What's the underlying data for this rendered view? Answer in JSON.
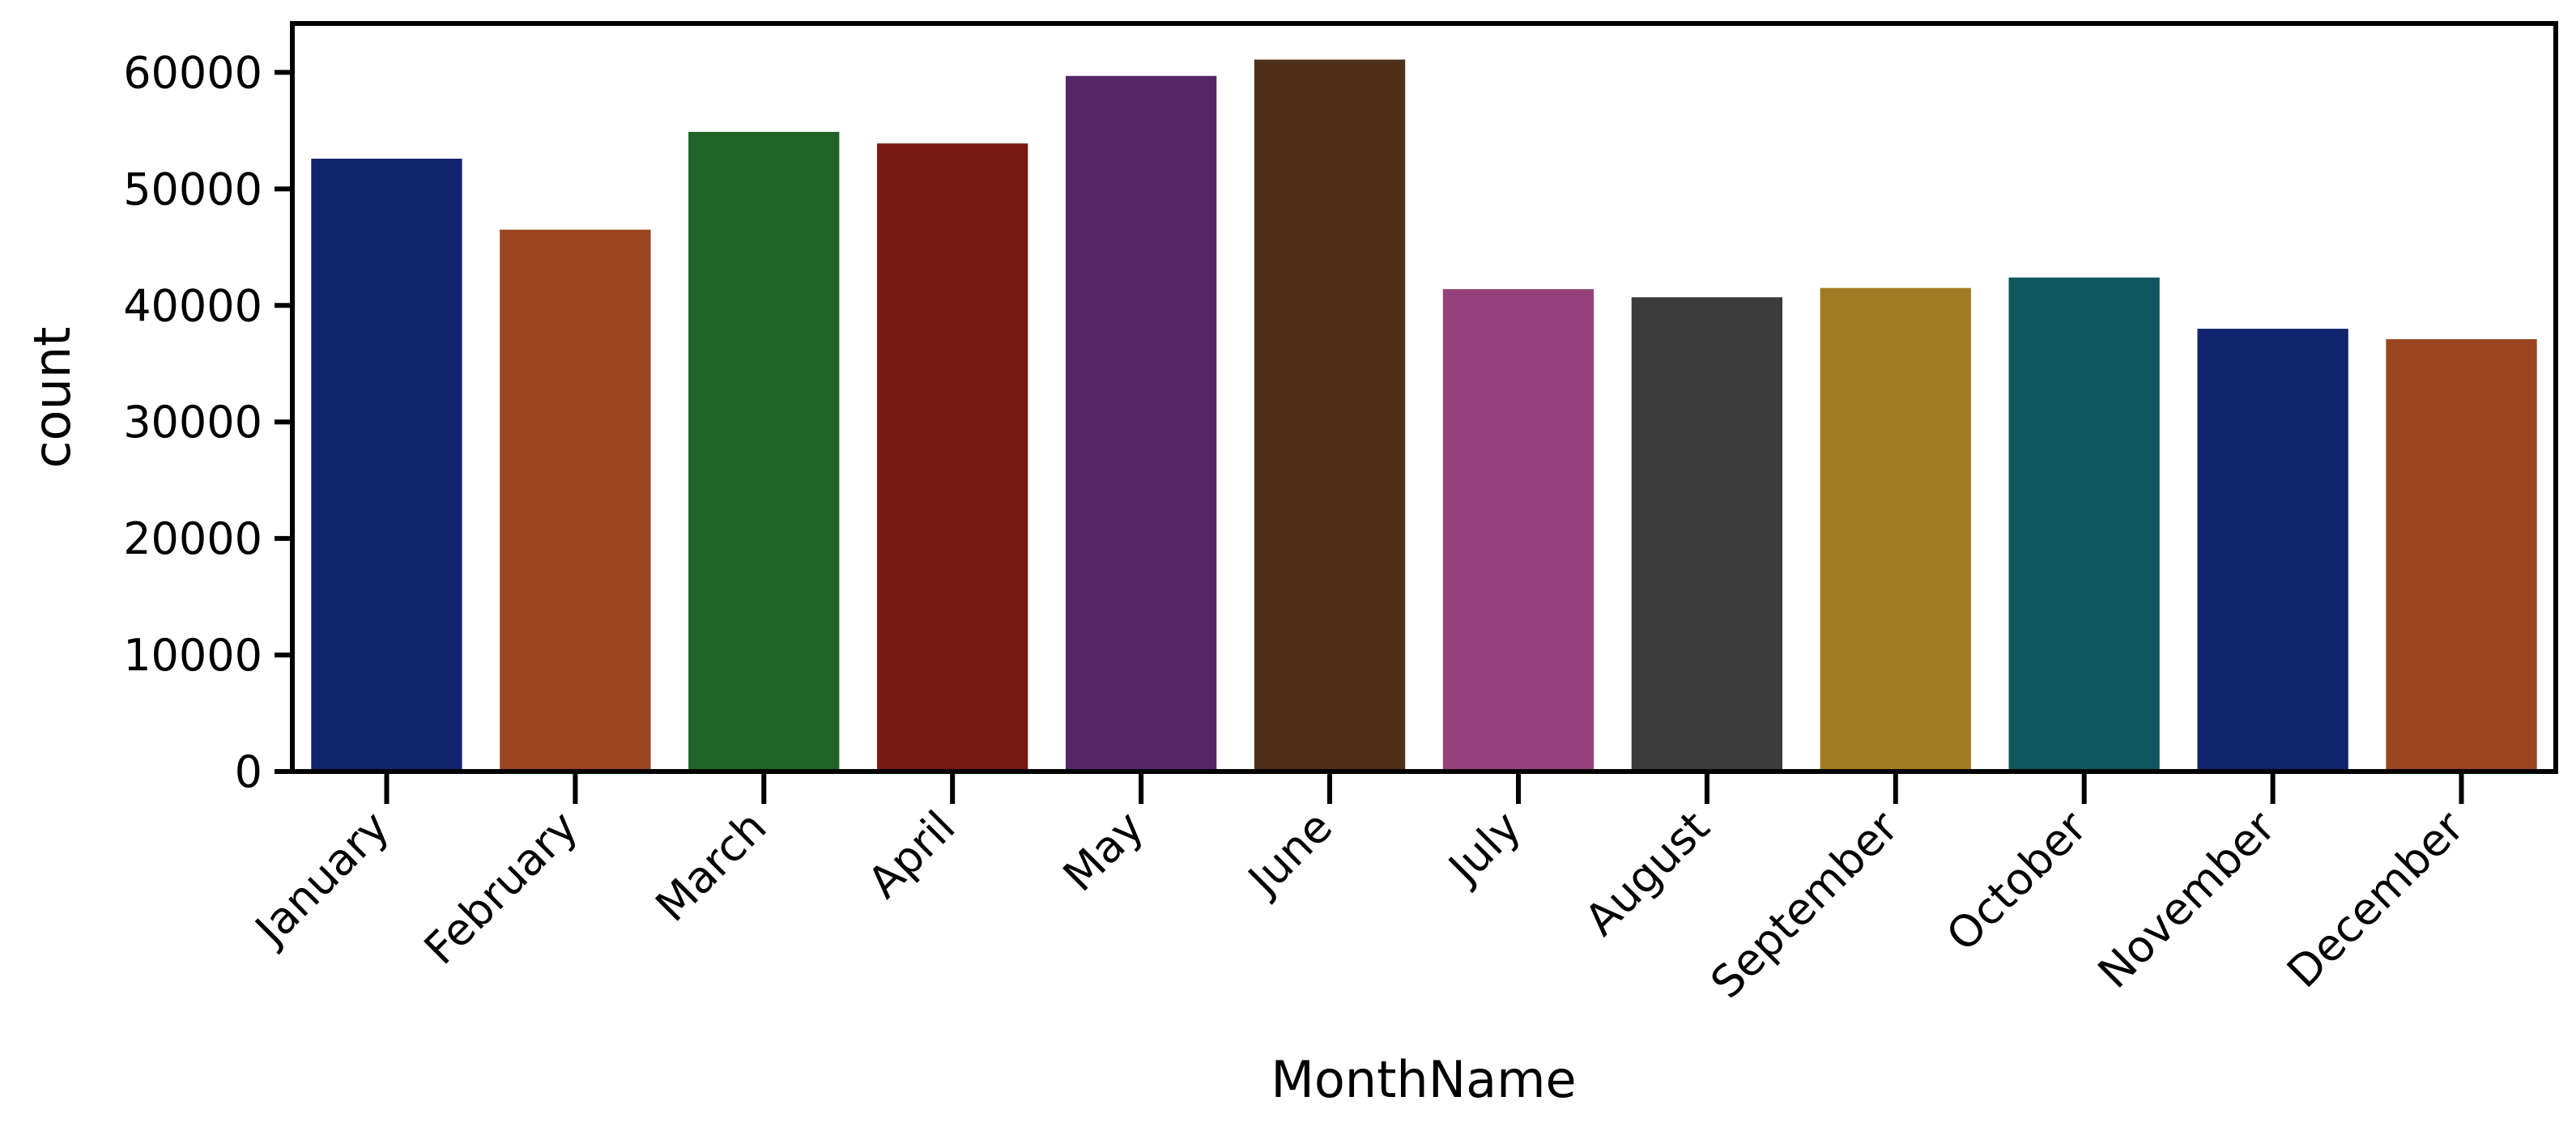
{
  "chart_data": {
    "type": "bar",
    "xlabel": "MonthName",
    "ylabel": "count",
    "ylim": [
      0,
      64200
    ],
    "yticks": [
      0,
      10000,
      20000,
      30000,
      40000,
      50000,
      60000
    ],
    "categories": [
      "January",
      "February",
      "March",
      "April",
      "May",
      "June",
      "July",
      "August",
      "September",
      "October",
      "November",
      "December"
    ],
    "values": [
      52600,
      46500,
      54900,
      53900,
      59700,
      61100,
      41400,
      40700,
      41500,
      42400,
      38000,
      37100
    ],
    "colors": [
      "#13246e",
      "#984520",
      "#206327",
      "#781812",
      "#532766",
      "#4e2f17",
      "#94427c",
      "#3b3b3b",
      "#a07b23",
      "#10565f",
      "#13246e",
      "#984520"
    ],
    "grid": false,
    "legend": "none"
  }
}
